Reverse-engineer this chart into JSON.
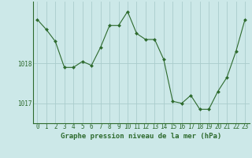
{
  "x": [
    0,
    1,
    2,
    3,
    4,
    5,
    6,
    7,
    8,
    9,
    10,
    11,
    12,
    13,
    14,
    15,
    16,
    17,
    18,
    19,
    20,
    21,
    22,
    23
  ],
  "y": [
    1019.1,
    1018.85,
    1018.55,
    1017.9,
    1017.9,
    1018.05,
    1017.95,
    1018.4,
    1018.95,
    1018.95,
    1019.3,
    1018.75,
    1018.6,
    1018.6,
    1018.1,
    1017.05,
    1017.0,
    1017.2,
    1016.85,
    1016.85,
    1017.3,
    1017.65,
    1018.3,
    1019.1
  ],
  "line_color": "#2d6a2d",
  "marker_color": "#2d6a2d",
  "bg_color": "#cce8e8",
  "grid_color": "#aacccc",
  "xlabel": "Graphe pression niveau de la mer (hPa)",
  "xlabel_fontsize": 6.5,
  "tick_fontsize": 5.5,
  "ytick_labels": [
    "1017",
    "1018"
  ],
  "ytick_values": [
    1017.0,
    1018.0
  ],
  "ylim": [
    1016.5,
    1019.55
  ],
  "xlim": [
    -0.5,
    23.5
  ]
}
